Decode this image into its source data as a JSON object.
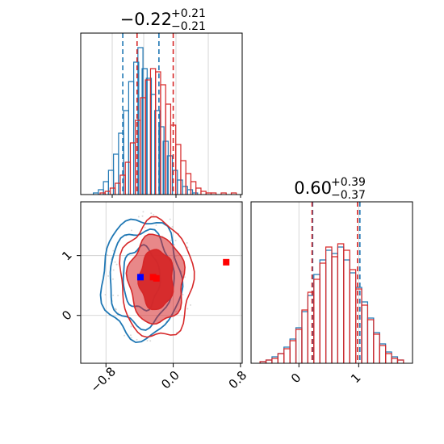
{
  "colors": {
    "series_a": "#1f77b4",
    "series_b": "#d62728",
    "axis": "#000000",
    "grid": "#cccccc",
    "marker_a": "#0000ff",
    "marker_b": "#ff0000"
  },
  "chart_data": [
    {
      "type": "histogram",
      "panel": "top-left",
      "title": {
        "value": "−0.22",
        "upper": "+0.21",
        "lower": "−0.21"
      },
      "x_range": [
        -1.1,
        0.82
      ],
      "grid": true,
      "series": [
        {
          "color": "#1f77b4",
          "quantile_lines": [
            -0.6,
            -0.17
          ],
          "bins": [
            {
              "x": -0.92,
              "y": 0.01
            },
            {
              "x": -0.86,
              "y": 0.03
            },
            {
              "x": -0.8,
              "y": 0.08
            },
            {
              "x": -0.74,
              "y": 0.15
            },
            {
              "x": -0.68,
              "y": 0.25
            },
            {
              "x": -0.62,
              "y": 0.38
            },
            {
              "x": -0.56,
              "y": 0.52
            },
            {
              "x": -0.5,
              "y": 0.7
            },
            {
              "x": -0.44,
              "y": 0.82
            },
            {
              "x": -0.39,
              "y": 0.91
            },
            {
              "x": -0.34,
              "y": 0.78
            },
            {
              "x": -0.29,
              "y": 0.72
            },
            {
              "x": -0.24,
              "y": 0.62
            },
            {
              "x": -0.19,
              "y": 0.52
            },
            {
              "x": -0.14,
              "y": 0.42
            },
            {
              "x": -0.09,
              "y": 0.33
            },
            {
              "x": -0.04,
              "y": 0.24
            },
            {
              "x": 0.02,
              "y": 0.15
            },
            {
              "x": 0.08,
              "y": 0.09
            },
            {
              "x": 0.14,
              "y": 0.05
            },
            {
              "x": 0.2,
              "y": 0.03
            },
            {
              "x": 0.26,
              "y": 0.01
            }
          ]
        },
        {
          "color": "#d62728",
          "quantile_lines": [
            -0.43,
            0.0
          ],
          "bins": [
            {
              "x": -0.84,
              "y": 0.01
            },
            {
              "x": -0.78,
              "y": 0.02
            },
            {
              "x": -0.72,
              "y": 0.04
            },
            {
              "x": -0.66,
              "y": 0.07
            },
            {
              "x": -0.6,
              "y": 0.12
            },
            {
              "x": -0.54,
              "y": 0.2
            },
            {
              "x": -0.48,
              "y": 0.32
            },
            {
              "x": -0.42,
              "y": 0.46
            },
            {
              "x": -0.36,
              "y": 0.6
            },
            {
              "x": -0.3,
              "y": 0.71
            },
            {
              "x": -0.24,
              "y": 0.78
            },
            {
              "x": -0.18,
              "y": 0.76
            },
            {
              "x": -0.12,
              "y": 0.68
            },
            {
              "x": -0.06,
              "y": 0.56
            },
            {
              "x": 0.0,
              "y": 0.43
            },
            {
              "x": 0.06,
              "y": 0.31
            },
            {
              "x": 0.12,
              "y": 0.21
            },
            {
              "x": 0.18,
              "y": 0.13
            },
            {
              "x": 0.24,
              "y": 0.08
            },
            {
              "x": 0.3,
              "y": 0.04
            },
            {
              "x": 0.36,
              "y": 0.02
            },
            {
              "x": 0.42,
              "y": 0.01
            },
            {
              "x": 0.48,
              "y": 0.01
            },
            {
              "x": 0.6,
              "y": 0.01
            },
            {
              "x": 0.72,
              "y": 0.01
            }
          ]
        }
      ]
    },
    {
      "type": "histogram",
      "panel": "bottom-right",
      "title": {
        "value": "0.60",
        "upper": "+0.39",
        "lower": "−0.37"
      },
      "x_range": [
        -0.8,
        1.9
      ],
      "x_ticks": [
        "0",
        "1"
      ],
      "x_tick_values": [
        0,
        1
      ],
      "grid": true,
      "series": [
        {
          "color": "#1f77b4",
          "quantile_lines": [
            0.23,
            1.02
          ],
          "bins": [
            {
              "x": -0.6,
              "y": 0.01
            },
            {
              "x": -0.5,
              "y": 0.02
            },
            {
              "x": -0.4,
              "y": 0.04
            },
            {
              "x": -0.3,
              "y": 0.06
            },
            {
              "x": -0.2,
              "y": 0.1
            },
            {
              "x": -0.1,
              "y": 0.15
            },
            {
              "x": 0.0,
              "y": 0.22
            },
            {
              "x": 0.1,
              "y": 0.32
            },
            {
              "x": 0.2,
              "y": 0.42
            },
            {
              "x": 0.3,
              "y": 0.55
            },
            {
              "x": 0.4,
              "y": 0.64
            },
            {
              "x": 0.5,
              "y": 0.7
            },
            {
              "x": 0.6,
              "y": 0.68
            },
            {
              "x": 0.7,
              "y": 0.72
            },
            {
              "x": 0.8,
              "y": 0.64
            },
            {
              "x": 0.9,
              "y": 0.56
            },
            {
              "x": 1.0,
              "y": 0.47
            },
            {
              "x": 1.1,
              "y": 0.38
            },
            {
              "x": 1.2,
              "y": 0.28
            },
            {
              "x": 1.3,
              "y": 0.19
            },
            {
              "x": 1.4,
              "y": 0.12
            },
            {
              "x": 1.5,
              "y": 0.07
            },
            {
              "x": 1.6,
              "y": 0.04
            },
            {
              "x": 1.7,
              "y": 0.02
            }
          ]
        },
        {
          "color": "#d62728",
          "quantile_lines": [
            0.22,
            0.98
          ],
          "bins": [
            {
              "x": -0.6,
              "y": 0.01
            },
            {
              "x": -0.5,
              "y": 0.02
            },
            {
              "x": -0.4,
              "y": 0.03
            },
            {
              "x": -0.3,
              "y": 0.06
            },
            {
              "x": -0.2,
              "y": 0.09
            },
            {
              "x": -0.1,
              "y": 0.14
            },
            {
              "x": 0.0,
              "y": 0.21
            },
            {
              "x": 0.1,
              "y": 0.33
            },
            {
              "x": 0.2,
              "y": 0.44
            },
            {
              "x": 0.3,
              "y": 0.52
            },
            {
              "x": 0.4,
              "y": 0.62
            },
            {
              "x": 0.5,
              "y": 0.72
            },
            {
              "x": 0.6,
              "y": 0.66
            },
            {
              "x": 0.7,
              "y": 0.74
            },
            {
              "x": 0.8,
              "y": 0.7
            },
            {
              "x": 0.9,
              "y": 0.58
            },
            {
              "x": 1.0,
              "y": 0.46
            },
            {
              "x": 1.1,
              "y": 0.36
            },
            {
              "x": 1.2,
              "y": 0.27
            },
            {
              "x": 1.3,
              "y": 0.18
            },
            {
              "x": 1.4,
              "y": 0.11
            },
            {
              "x": 1.5,
              "y": 0.06
            },
            {
              "x": 1.6,
              "y": 0.03
            },
            {
              "x": 1.7,
              "y": 0.02
            }
          ]
        }
      ]
    },
    {
      "type": "contour",
      "panel": "bottom-left",
      "x_range": [
        -1.1,
        0.82
      ],
      "y_range": [
        -0.8,
        1.9
      ],
      "x_ticks": [
        "−0.8",
        "0.0",
        "0.8"
      ],
      "x_tick_values": [
        -0.8,
        0.0,
        0.8
      ],
      "y_ticks": [
        "0",
        "1"
      ],
      "y_tick_values": [
        0,
        1
      ],
      "grid": true,
      "series": [
        {
          "color": "#1f77b4",
          "filled": false,
          "center": [
            -0.38,
            0.62
          ],
          "levels": [
            {
              "rx": 0.22,
              "ry": 0.52
            },
            {
              "rx": 0.38,
              "ry": 0.8
            },
            {
              "rx": 0.47,
              "ry": 1.0
            }
          ]
        },
        {
          "color": "#d62728",
          "filled": true,
          "center": [
            -0.2,
            0.6
          ],
          "levels": [
            {
              "rx": 0.2,
              "ry": 0.5,
              "fill_opacity": 0.95
            },
            {
              "rx": 0.33,
              "ry": 0.74,
              "fill_opacity": 0.55
            },
            {
              "rx": 0.43,
              "ry": 0.98,
              "fill_opacity": 0.0
            }
          ]
        }
      ],
      "markers": [
        {
          "x": -0.39,
          "y": 0.64,
          "color": "#0000ff"
        },
        {
          "x": -0.24,
          "y": 0.64,
          "color": "#ff0000"
        },
        {
          "x": -0.2,
          "y": 0.62,
          "color": "#ff0000"
        },
        {
          "x": 0.63,
          "y": 0.89,
          "color": "#ff0000"
        }
      ]
    }
  ]
}
